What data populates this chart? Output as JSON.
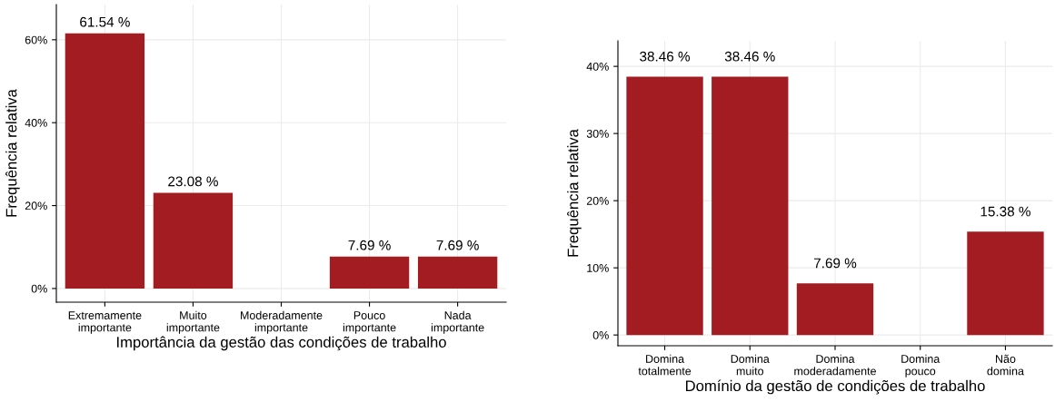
{
  "chart_data": [
    {
      "type": "bar",
      "xlabel": "Importância da gestão das condições de trabalho",
      "ylabel": "Frequência relativa",
      "categories": [
        "Extremamente\nimportante",
        "Muito\nimportante",
        "Moderadamente\nimportante",
        "Pouco\nimportante",
        "Nada\nimportante"
      ],
      "values": [
        61.54,
        23.08,
        0,
        7.69,
        7.69
      ],
      "color": "#a31c22",
      "value_labels": [
        "61.54 %",
        "23.08 %",
        null,
        "7.69 %",
        "7.69 %"
      ],
      "ylim": [
        -3.3,
        68.5
      ],
      "yticks": [
        {
          "value": 0,
          "label": "0%"
        },
        {
          "value": 20,
          "label": "20%"
        },
        {
          "value": 40,
          "label": "40%"
        },
        {
          "value": 60,
          "label": "60%"
        }
      ],
      "grid": true
    },
    {
      "type": "bar",
      "xlabel": "Domínio da gestão de condições de trabalho",
      "ylabel": "Frequência relativa",
      "categories": [
        "Domina\ntotalmente",
        "Domina\nmuito",
        "Domina\nmoderadamente",
        "Domina\npouco",
        "Não\ndomina"
      ],
      "values": [
        38.46,
        38.46,
        7.69,
        0,
        15.38
      ],
      "color": "#a31c22",
      "value_labels": [
        "38.46 %",
        "38.46 %",
        "7.69 %",
        null,
        "15.38 %"
      ],
      "ylim": [
        -1.6,
        43.8
      ],
      "yticks": [
        {
          "value": 0,
          "label": "0%"
        },
        {
          "value": 10,
          "label": "10%"
        },
        {
          "value": 20,
          "label": "20%"
        },
        {
          "value": 30,
          "label": "30%"
        },
        {
          "value": 40,
          "label": "40%"
        }
      ],
      "grid": true
    }
  ]
}
